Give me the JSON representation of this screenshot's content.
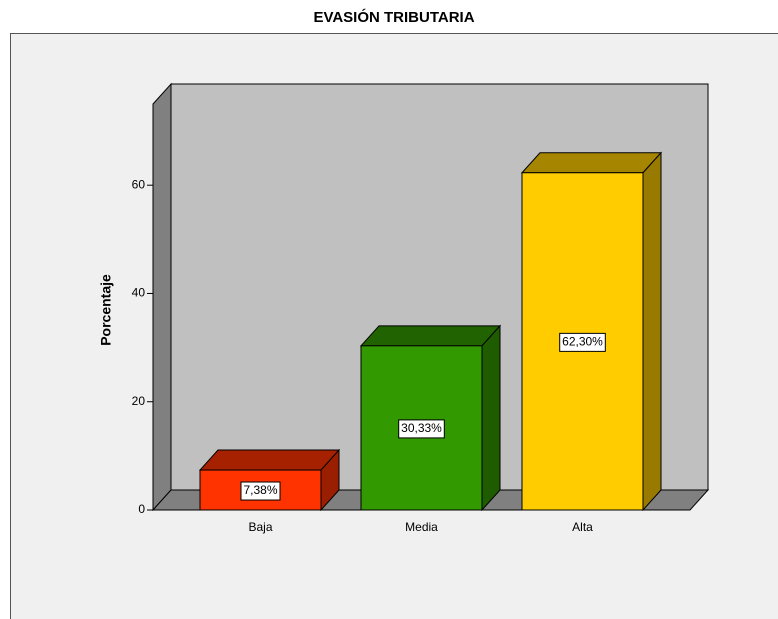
{
  "chart_data": {
    "type": "bar3d",
    "title": "EVASIÓN TRIBUTARIA",
    "y_label": "Porcentaje",
    "categories": [
      "Baja",
      "Media",
      "Alta"
    ],
    "values": [
      7.38,
      30.33,
      62.3
    ],
    "value_labels": [
      "7,38%",
      "30,33%",
      "62,30%"
    ],
    "colors": [
      "#ff3300",
      "#339900",
      "#ffcc00"
    ],
    "ylim": [
      0,
      75
    ],
    "yticks": [
      0,
      20,
      40,
      60
    ]
  }
}
